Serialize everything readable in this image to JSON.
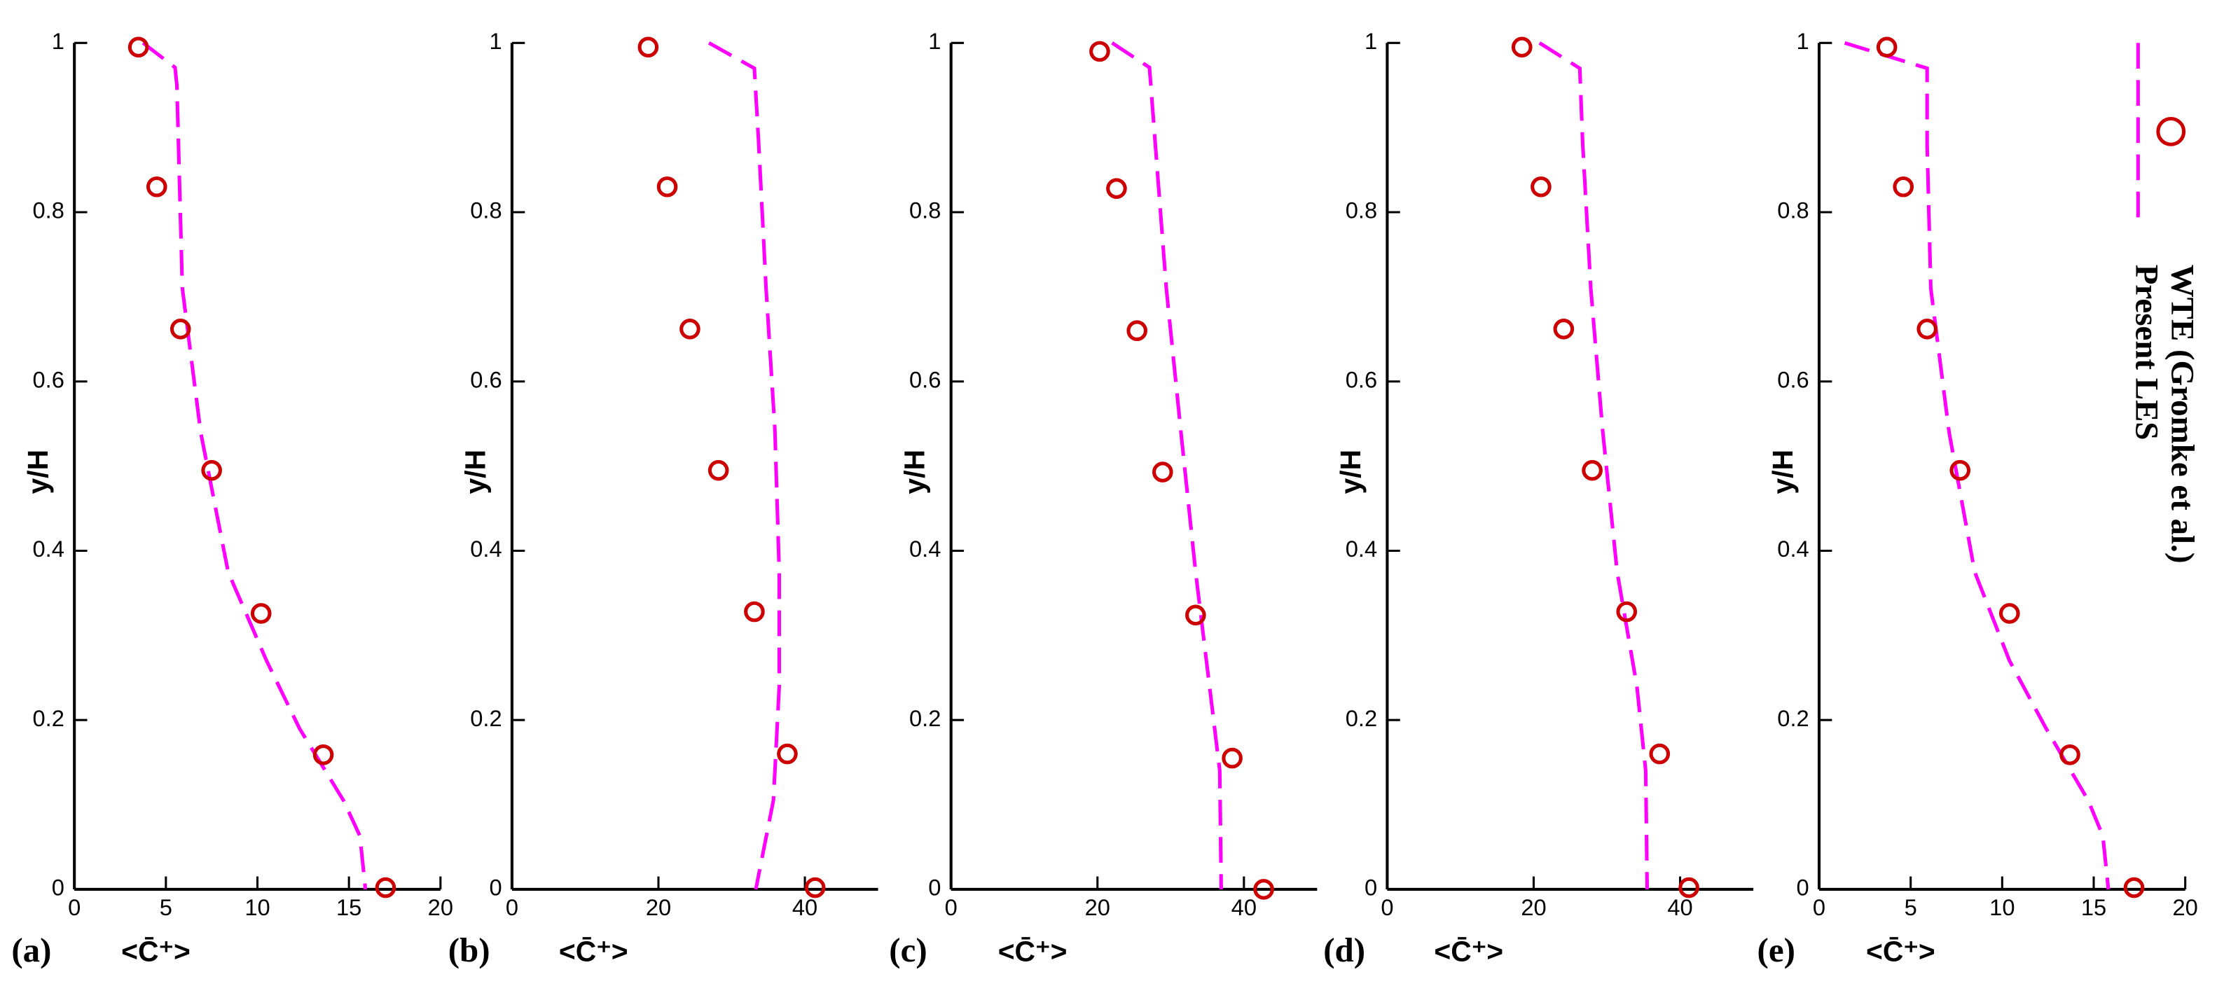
{
  "chart_data": [
    {
      "type": "line",
      "panel_label": "(a)",
      "xlabel": "<C̄⁺>",
      "ylabel": "y/H",
      "xlim": [
        0,
        20
      ],
      "xticks": [
        0,
        5,
        10,
        15,
        20
      ],
      "ylim": [
        0,
        1
      ],
      "yticks": [
        0,
        0.2,
        0.4,
        0.6,
        0.8,
        1
      ],
      "series": [
        {
          "mode": "line",
          "color": "#ff00ff",
          "x": [
            3.75,
            5.5,
            5.6,
            5.9,
            6.9,
            8.4,
            10.5,
            12.3,
            14.7,
            15.6,
            15.9
          ],
          "values": [
            1.0,
            0.971,
            0.95,
            0.71,
            0.54,
            0.375,
            0.27,
            0.19,
            0.105,
            0.063,
            0
          ]
        },
        {
          "mode": "markers",
          "color": "#cc0000",
          "x": [
            3.5,
            4.5,
            5.8,
            7.5,
            10.2,
            13.6,
            17.0
          ],
          "values": [
            0.995,
            0.83,
            0.662,
            0.495,
            0.326,
            0.159,
            0.002
          ]
        }
      ]
    },
    {
      "type": "line",
      "panel_label": "(b)",
      "xlabel": "<C̄⁺>",
      "ylabel": "y/H",
      "xlim": [
        0,
        50
      ],
      "xticks": [
        0,
        20,
        40
      ],
      "ylim": [
        0,
        1
      ],
      "yticks": [
        0,
        0.2,
        0.4,
        0.6,
        0.8,
        1
      ],
      "series": [
        {
          "mode": "line",
          "color": "#ff00ff",
          "x": [
            26.9,
            33.1,
            33.7,
            34.7,
            35.9,
            36.5,
            36.5,
            35.7,
            33.3
          ],
          "values": [
            1.0,
            0.97,
            0.88,
            0.71,
            0.544,
            0.375,
            0.24,
            0.105,
            0
          ]
        },
        {
          "mode": "markers",
          "color": "#cc0000",
          "x": [
            18.6,
            21.2,
            24.3,
            28.2,
            33.1,
            37.6,
            41.4
          ],
          "values": [
            0.995,
            0.83,
            0.662,
            0.495,
            0.328,
            0.16,
            0.002
          ]
        }
      ]
    },
    {
      "type": "line",
      "panel_label": "(c)",
      "xlabel": "<C̄⁺>",
      "ylabel": "y/H",
      "xlim": [
        0,
        50
      ],
      "xticks": [
        0,
        20,
        40
      ],
      "ylim": [
        0,
        1
      ],
      "yticks": [
        0,
        0.2,
        0.4,
        0.6,
        0.8,
        1
      ],
      "series": [
        {
          "mode": "line",
          "color": "#ff00ff",
          "x": [
            22.0,
            27.1,
            27.9,
            29.4,
            31.4,
            33.4,
            35.3,
            36.7,
            36.9
          ],
          "values": [
            1.0,
            0.971,
            0.88,
            0.71,
            0.54,
            0.375,
            0.24,
            0.14,
            0
          ]
        },
        {
          "mode": "markers",
          "color": "#cc0000",
          "x": [
            20.3,
            22.6,
            25.4,
            28.9,
            33.4,
            38.4,
            42.7
          ],
          "values": [
            0.99,
            0.828,
            0.66,
            0.493,
            0.324,
            0.155,
            0
          ]
        }
      ]
    },
    {
      "type": "line",
      "panel_label": "(d)",
      "xlabel": "<C̄⁺>",
      "ylabel": "y/H",
      "xlim": [
        0,
        50
      ],
      "xticks": [
        0,
        20,
        40
      ],
      "ylim": [
        0,
        1
      ],
      "yticks": [
        0,
        0.2,
        0.4,
        0.6,
        0.8,
        1
      ],
      "series": [
        {
          "mode": "line",
          "color": "#ff00ff",
          "x": [
            20.8,
            26.3,
            26.7,
            27.8,
            29.4,
            31.4,
            34.1,
            35.3,
            35.5
          ],
          "values": [
            1.0,
            0.97,
            0.88,
            0.71,
            0.544,
            0.375,
            0.24,
            0.14,
            0
          ]
        },
        {
          "mode": "markers",
          "color": "#cc0000",
          "x": [
            18.4,
            21.0,
            24.1,
            28.0,
            32.7,
            37.2,
            41.2
          ],
          "values": [
            0.995,
            0.83,
            0.662,
            0.495,
            0.328,
            0.16,
            0.002
          ]
        }
      ]
    },
    {
      "type": "line",
      "panel_label": "(e)",
      "xlabel": "<C̄⁺>",
      "ylabel": "y/H",
      "xlim": [
        0,
        20
      ],
      "xticks": [
        0,
        5,
        10,
        15,
        20
      ],
      "ylim": [
        0,
        1
      ],
      "yticks": [
        0,
        0.2,
        0.4,
        0.6,
        0.8,
        1
      ],
      "series": [
        {
          "name": "Present LES",
          "mode": "line",
          "color": "#ff00ff",
          "x": [
            1.4,
            5.9,
            5.9,
            6.1,
            7.1,
            8.5,
            10.4,
            12.4,
            14.7,
            15.5,
            15.8
          ],
          "values": [
            1.0,
            0.97,
            0.88,
            0.71,
            0.54,
            0.375,
            0.27,
            0.19,
            0.105,
            0.063,
            0
          ]
        },
        {
          "name": "WTE (Gromke et al.)",
          "mode": "markers",
          "color": "#cc0000",
          "x": [
            3.7,
            4.6,
            5.9,
            7.7,
            10.4,
            13.7,
            17.2
          ],
          "values": [
            0.995,
            0.83,
            0.662,
            0.495,
            0.326,
            0.159,
            0.002
          ]
        }
      ]
    }
  ]
}
